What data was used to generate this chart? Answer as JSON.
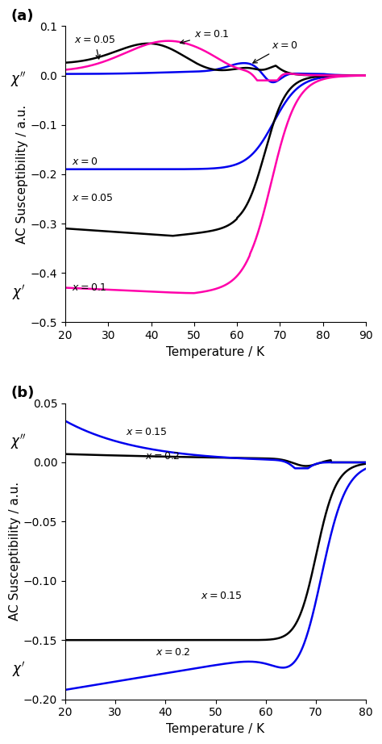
{
  "panel_a": {
    "xlim": [
      20,
      90
    ],
    "ylim": [
      -0.5,
      0.1
    ],
    "yticks": [
      0.1,
      0,
      -0.1,
      -0.2,
      -0.3,
      -0.4,
      -0.5
    ],
    "xticks": [
      20,
      30,
      40,
      50,
      60,
      70,
      80,
      90
    ],
    "xlabel": "Temperature / K",
    "ylabel": "AC Susceptibility / a.u."
  },
  "panel_b": {
    "xlim": [
      20,
      80
    ],
    "ylim": [
      -0.2,
      0.05
    ],
    "yticks": [
      0.05,
      0,
      -0.05,
      -0.1,
      -0.15,
      -0.2
    ],
    "xticks": [
      20,
      30,
      40,
      50,
      60,
      70,
      80
    ],
    "xlabel": "Temperature / K",
    "ylabel": "AC Susceptibility / a.u."
  },
  "colors": {
    "blue": "#0000EE",
    "black": "#000000",
    "magenta": "#FF00AA"
  },
  "lw": 1.8
}
